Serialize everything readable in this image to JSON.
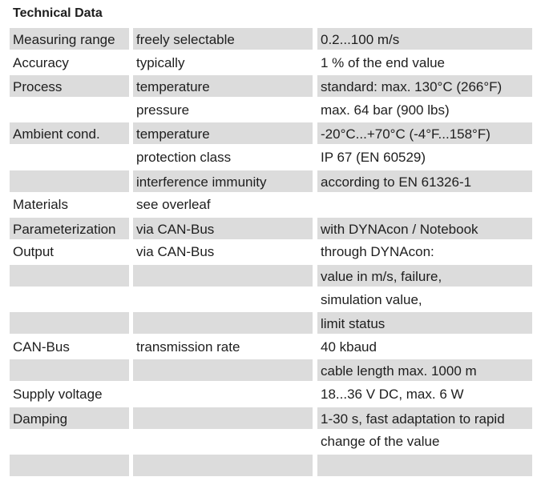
{
  "title": "Technical Data",
  "table": {
    "rows": [
      [
        "Measuring range",
        "freely selectable",
        "0.2...100 m/s"
      ],
      [
        "Accuracy",
        "typically",
        "1 % of the end value"
      ],
      [
        "Process",
        "temperature",
        "standard: max. 130°C (266°F)"
      ],
      [
        null,
        "pressure",
        "max. 64 bar (900 lbs)"
      ],
      [
        "Ambient cond.",
        "temperature",
        "-20°C...+70°C (-4°F...158°F)"
      ],
      [
        null,
        "protection class",
        "IP 67 (EN 60529)"
      ],
      [
        null,
        "interference immunity",
        "according to EN 61326-1"
      ],
      [
        "Materials",
        "see overleaf",
        null
      ],
      [
        "Parameterization",
        "via CAN-Bus",
        "with DYNAcon / Notebook"
      ],
      [
        "Output",
        "via CAN-Bus",
        "through DYNAcon:"
      ],
      [
        null,
        null,
        "value in m/s, failure,"
      ],
      [
        null,
        null,
        "simulation value,"
      ],
      [
        null,
        null,
        "limit status"
      ],
      [
        "CAN-Bus",
        "transmission rate",
        "40 kbaud"
      ],
      [
        null,
        null,
        "cable length max. 1000 m"
      ],
      [
        "Supply voltage",
        null,
        "18...36 V DC, max. 6 W"
      ],
      [
        "Damping",
        null,
        "1-30 s, fast adaptation to rapid"
      ],
      [
        null,
        null,
        "change of the value"
      ],
      [
        null,
        null,
        null
      ]
    ]
  }
}
